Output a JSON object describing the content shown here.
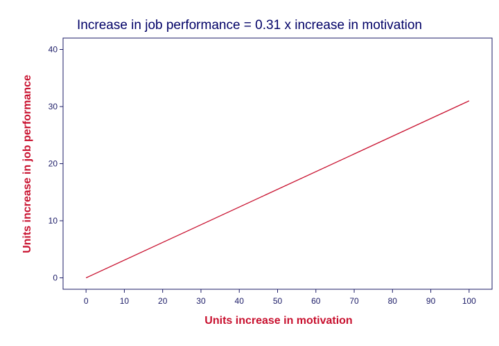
{
  "chart_data": {
    "type": "line",
    "title": "Increase in job performance = 0.31 x increase in motivation",
    "xlabel": "Units increase in motivation",
    "ylabel": "Units increase in job performance",
    "xlim": [
      -6,
      106
    ],
    "ylim": [
      -2,
      42
    ],
    "xticks": [
      0,
      10,
      20,
      30,
      40,
      50,
      60,
      70,
      80,
      90,
      100
    ],
    "yticks": [
      0,
      10,
      20,
      30,
      40
    ],
    "grid": false,
    "series": [
      {
        "x": [
          0,
          100
        ],
        "y": [
          0,
          31
        ],
        "color": "#c8102e"
      }
    ],
    "colors": {
      "axis": "#1a1a66",
      "title": "#000066",
      "label": "#c8102e",
      "line": "#c8102e"
    }
  }
}
